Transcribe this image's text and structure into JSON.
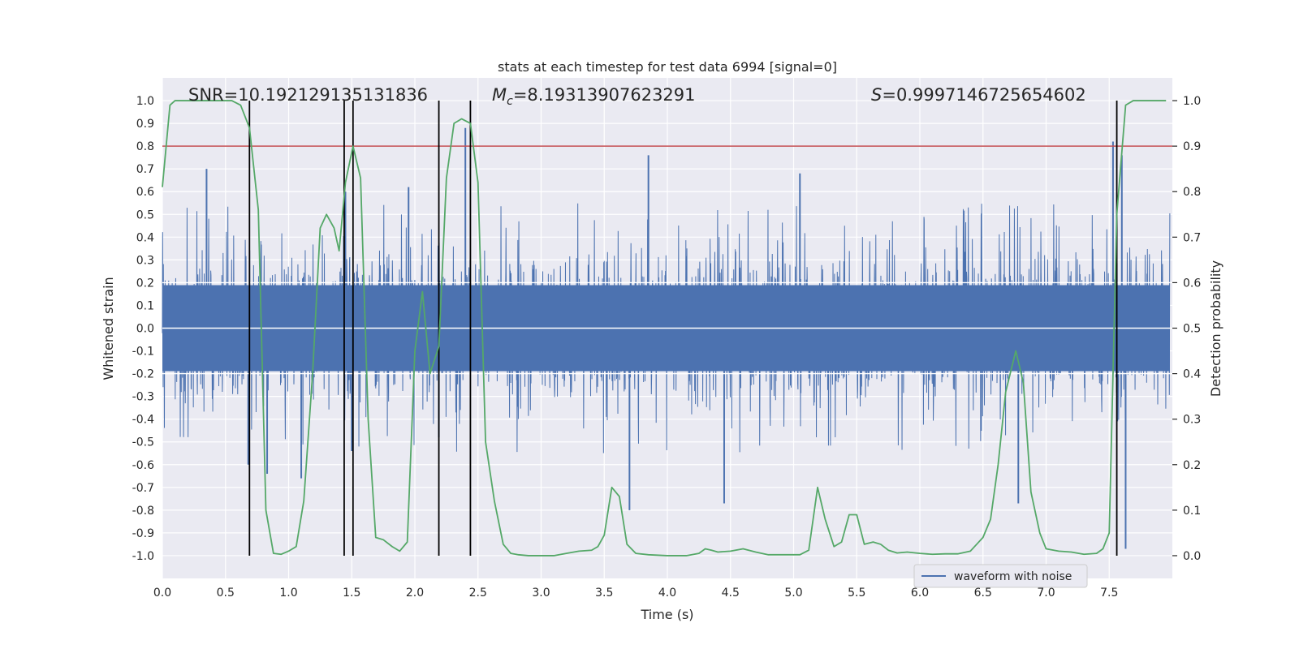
{
  "chart_data": {
    "type": "line",
    "title": "stats at each timestep for test data 6994 [signal=0]",
    "xlabel": "Time (s)",
    "ylabel": "Whitened strain",
    "ylabel_right": "Detection probability",
    "xlim": [
      0.0,
      8.0
    ],
    "ylim": [
      -1.1,
      1.1
    ],
    "ylim_right": [
      -0.05,
      1.05
    ],
    "x_ticks": [
      0.0,
      0.5,
      1.0,
      1.5,
      2.0,
      2.5,
      3.0,
      3.5,
      4.0,
      4.5,
      5.0,
      5.5,
      6.0,
      6.5,
      7.0,
      7.5
    ],
    "x_tick_labels": [
      "0.0",
      "0.5",
      "1.0",
      "1.5",
      "2.0",
      "2.5",
      "3.0",
      "3.5",
      "4.0",
      "4.5",
      "5.0",
      "5.5",
      "6.0",
      "6.5",
      "7.0",
      "7.5"
    ],
    "y_ticks": [
      1.0,
      0.9,
      0.8,
      0.7,
      0.6,
      0.5,
      0.4,
      0.3,
      0.2,
      0.1,
      0.0,
      -0.1,
      -0.2,
      -0.3,
      -0.4,
      -0.5,
      -0.6,
      -0.7,
      -0.8,
      -0.9,
      -1.0
    ],
    "y_tick_labels": [
      "1.0",
      "0.9",
      "0.8",
      "0.7",
      "0.6",
      "0.5",
      "0.4",
      "0.3",
      "0.2",
      "0.1",
      "0.0",
      "-0.1",
      "-0.2",
      "-0.3",
      "-0.4",
      "-0.5",
      "-0.6",
      "-0.7",
      "-0.8",
      "-0.9",
      "-1.0"
    ],
    "y_right_ticks": [
      1.0,
      0.9,
      0.8,
      0.7,
      0.6,
      0.5,
      0.4,
      0.3,
      0.2,
      0.1,
      0.0
    ],
    "y_right_tick_labels": [
      "1.0",
      "0.9",
      "0.8",
      "0.7",
      "0.6",
      "0.5",
      "0.4",
      "0.3",
      "0.2",
      "0.1",
      "0.0"
    ],
    "grid": true,
    "legend_position": "bottom-right",
    "annotations": {
      "snr": "SNR=10.192129135131836",
      "mc_prefix": "M",
      "mc_sub": "c",
      "mc_value": "=8.19313907623291",
      "s_prefix": "S",
      "s_value": "=0.9997146725654602"
    },
    "threshold_right": 0.9,
    "vertical_markers": [
      0.69,
      1.44,
      1.51,
      2.19,
      2.44,
      7.56
    ],
    "colors": {
      "waveform": "#4c72b0",
      "probability": "#55a868",
      "threshold": "#c44e52",
      "markers": "#000000",
      "background": "#eaeaf2",
      "grid": "#ffffff"
    },
    "series": [
      {
        "name": "waveform with noise",
        "axis": "left",
        "style": "noise-band",
        "x_range": [
          0.0,
          7.98
        ],
        "core_amplitude": 0.27,
        "typical_peak": 0.45,
        "extreme_peaks": [
          {
            "x": 0.35,
            "y": 0.7
          },
          {
            "x": 0.68,
            "y": -0.6
          },
          {
            "x": 0.83,
            "y": -0.64
          },
          {
            "x": 1.1,
            "y": -0.66
          },
          {
            "x": 1.45,
            "y": 0.6
          },
          {
            "x": 1.5,
            "y": -0.54
          },
          {
            "x": 1.95,
            "y": 0.62
          },
          {
            "x": 2.19,
            "y": -0.48
          },
          {
            "x": 2.4,
            "y": 0.88
          },
          {
            "x": 3.7,
            "y": -0.8
          },
          {
            "x": 3.85,
            "y": 0.76
          },
          {
            "x": 4.45,
            "y": -0.77
          },
          {
            "x": 5.05,
            "y": 0.68
          },
          {
            "x": 6.78,
            "y": -0.77
          },
          {
            "x": 7.53,
            "y": 0.82
          },
          {
            "x": 7.6,
            "y": 0.76
          },
          {
            "x": 7.63,
            "y": -0.97
          }
        ]
      },
      {
        "name": "",
        "axis": "right",
        "style": "line",
        "x": [
          0.0,
          0.06,
          0.1,
          0.15,
          0.2,
          0.3,
          0.4,
          0.5,
          0.55,
          0.62,
          0.69,
          0.76,
          0.82,
          0.88,
          0.94,
          1.0,
          1.06,
          1.12,
          1.19,
          1.25,
          1.3,
          1.36,
          1.4,
          1.45,
          1.51,
          1.57,
          1.63,
          1.69,
          1.75,
          1.82,
          1.88,
          1.94,
          2.0,
          2.06,
          2.12,
          2.19,
          2.25,
          2.31,
          2.37,
          2.44,
          2.5,
          2.56,
          2.63,
          2.7,
          2.76,
          2.82,
          2.9,
          3.0,
          3.1,
          3.2,
          3.3,
          3.4,
          3.45,
          3.5,
          3.56,
          3.62,
          3.68,
          3.75,
          3.85,
          4.0,
          4.15,
          4.25,
          4.3,
          4.35,
          4.4,
          4.5,
          4.6,
          4.7,
          4.8,
          4.95,
          5.05,
          5.12,
          5.19,
          5.25,
          5.32,
          5.38,
          5.44,
          5.5,
          5.56,
          5.63,
          5.69,
          5.75,
          5.82,
          5.9,
          6.0,
          6.1,
          6.2,
          6.3,
          6.4,
          6.45,
          6.5,
          6.56,
          6.62,
          6.68,
          6.76,
          6.82,
          6.88,
          6.95,
          7.0,
          7.1,
          7.2,
          7.3,
          7.4,
          7.45,
          7.5,
          7.56,
          7.63,
          7.69,
          7.75,
          7.85,
          7.95
        ],
        "y": [
          0.81,
          0.99,
          1.0,
          1.0,
          1.0,
          1.0,
          1.0,
          1.0,
          1.0,
          0.99,
          0.94,
          0.76,
          0.1,
          0.005,
          0.003,
          0.01,
          0.02,
          0.12,
          0.4,
          0.72,
          0.75,
          0.72,
          0.67,
          0.82,
          0.9,
          0.83,
          0.3,
          0.04,
          0.035,
          0.02,
          0.01,
          0.03,
          0.45,
          0.58,
          0.4,
          0.46,
          0.83,
          0.95,
          0.96,
          0.95,
          0.82,
          0.25,
          0.12,
          0.025,
          0.005,
          0.002,
          0.0,
          0.0,
          0.0,
          0.005,
          0.01,
          0.012,
          0.02,
          0.045,
          0.15,
          0.13,
          0.025,
          0.005,
          0.002,
          0.0,
          0.0,
          0.005,
          0.015,
          0.012,
          0.008,
          0.01,
          0.015,
          0.008,
          0.002,
          0.002,
          0.002,
          0.012,
          0.15,
          0.08,
          0.02,
          0.03,
          0.09,
          0.09,
          0.025,
          0.03,
          0.025,
          0.012,
          0.006,
          0.008,
          0.005,
          0.003,
          0.004,
          0.004,
          0.01,
          0.025,
          0.04,
          0.08,
          0.2,
          0.36,
          0.45,
          0.38,
          0.14,
          0.05,
          0.015,
          0.01,
          0.008,
          0.003,
          0.005,
          0.015,
          0.05,
          0.75,
          0.99,
          1.0,
          1.0,
          1.0,
          1.0
        ]
      }
    ]
  }
}
